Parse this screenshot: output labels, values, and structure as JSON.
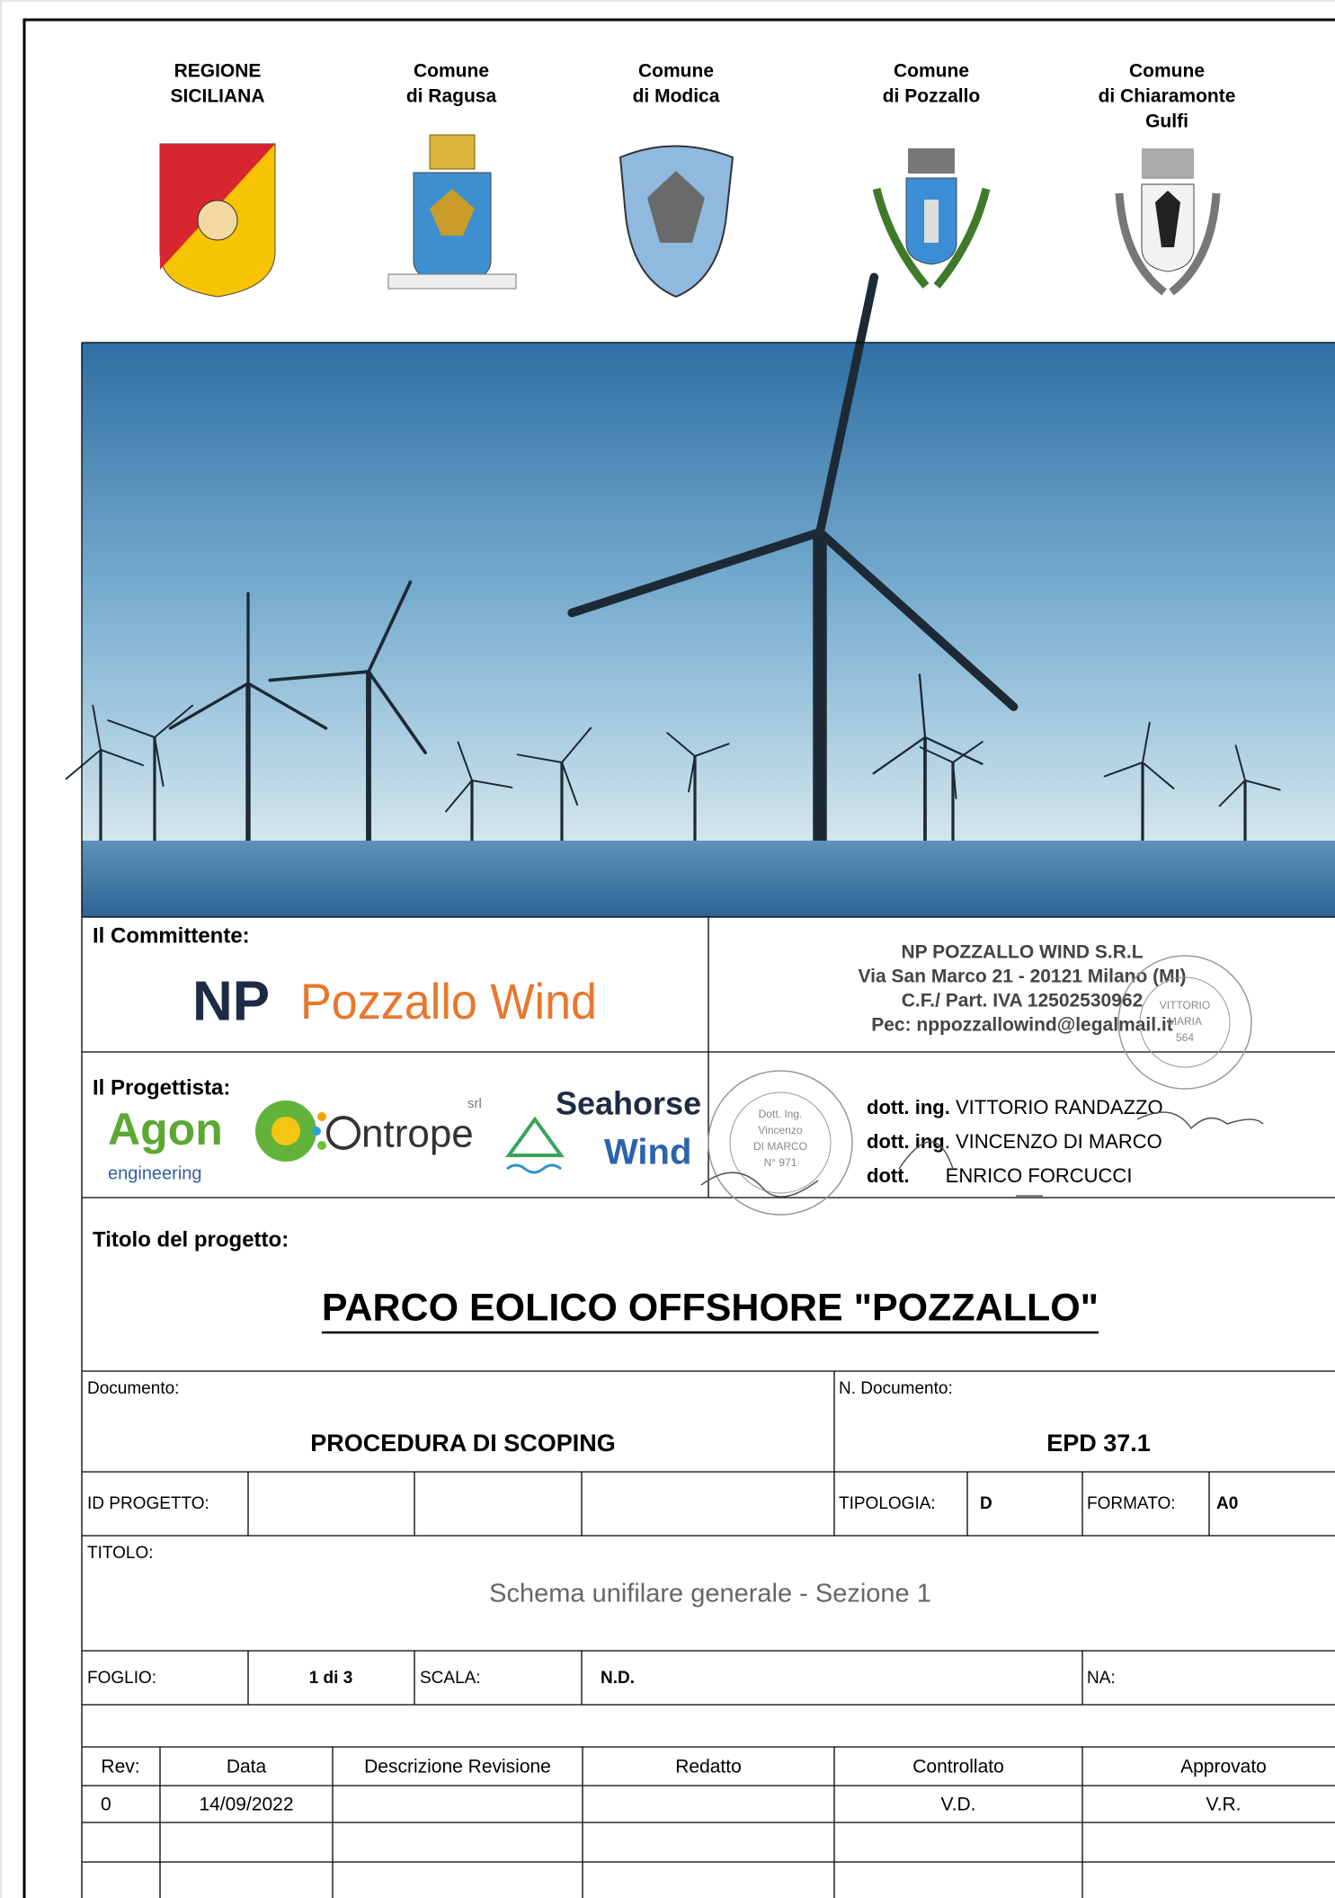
{
  "header": {
    "authorities": [
      [
        "REGIONE",
        "SICILIANA"
      ],
      [
        "Comune",
        "di Ragusa"
      ],
      [
        "Comune",
        "di Modica"
      ],
      [
        "Comune",
        "di Pozzallo"
      ],
      [
        "Comune",
        "di Chiaramonte",
        "Gulfi"
      ]
    ]
  },
  "committente": {
    "label": "Il Committente:",
    "logo": {
      "mark": "NP",
      "name": "Pozzallo Wind"
    },
    "company": [
      "NP POZZALLO WIND S.R.L",
      "Via San Marco 21 - 20121 Milano (MI)",
      "C.F./ Part. IVA 12502530962",
      "Pec: nppozzallowind@legalmail.it"
    ]
  },
  "progettista": {
    "label": "Il Progettista:",
    "logos": {
      "agon": "Agon",
      "agon_sub": "engineering",
      "entrope": "ntrope",
      "entrope_sub": "srl",
      "seahorse": "Seahorse",
      "seahorse_sub": "Wind"
    },
    "engineers": [
      {
        "title": "dott. ing.",
        "name": "VITTORIO RANDAZZO"
      },
      {
        "title": "dott. ing",
        "name": ". VINCENZO DI MARCO"
      },
      {
        "title": "dott.",
        "name": "ENRICO FORCUCCI"
      }
    ],
    "stamps": {
      "left": [
        "Dott. Ing.",
        "Vincenzo",
        "DI MARCO",
        "N° 971"
      ],
      "right": [
        "VITTORIO",
        "MARIA",
        "564"
      ]
    }
  },
  "project": {
    "label": "Titolo del progetto:",
    "title": "PARCO EOLICO OFFSHORE \"POZZALLO\""
  },
  "table": {
    "documento": {
      "label": "Documento:",
      "value": "PROCEDURA DI SCOPING"
    },
    "n_documento": {
      "label": "N. Documento:",
      "value": "EPD 37.1"
    },
    "id_progetto": {
      "label": "ID PROGETTO:"
    },
    "tipologia": {
      "label": "TIPOLOGIA:",
      "value": "D"
    },
    "formato": {
      "label": "FORMATO:",
      "value": "A0"
    },
    "titolo": {
      "label": "TITOLO:",
      "value": "Schema unifilare generale - Sezione 1"
    },
    "foglio": {
      "label": "FOGLIO:",
      "value": "1 di 3"
    },
    "scala": {
      "label": "SCALA:",
      "value": "N.D."
    },
    "na": {
      "label": "NA:"
    },
    "revisions": {
      "header": [
        "Rev:",
        "Data",
        "Descrizione Revisione",
        "Redatto",
        "Controllato",
        "Approvato"
      ],
      "rows": [
        {
          "rev": "0",
          "data": "14/09/2022",
          "controllato": "V.D.",
          "approvato": "V.R."
        }
      ]
    }
  }
}
